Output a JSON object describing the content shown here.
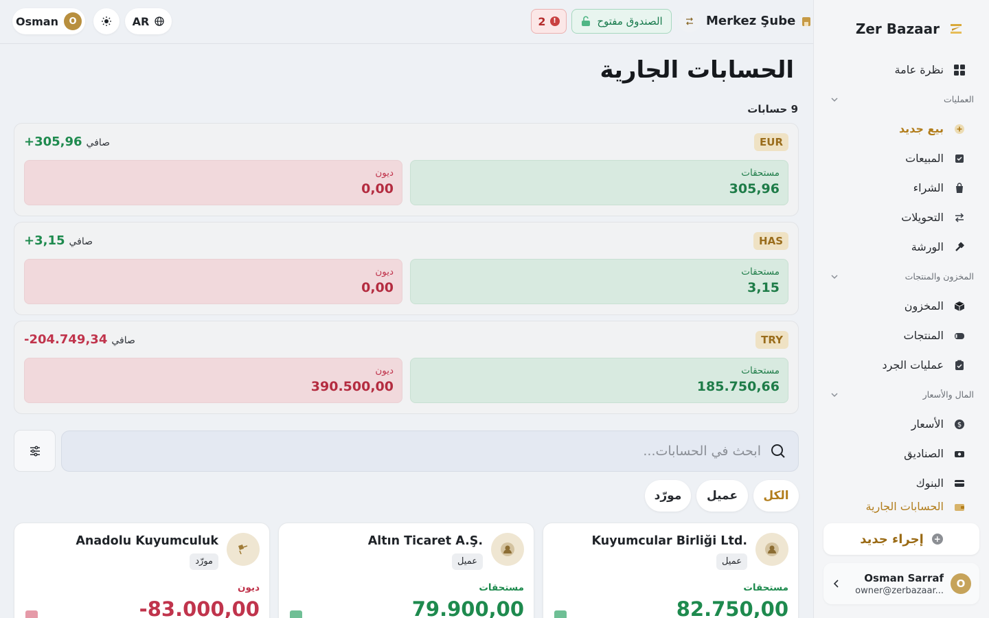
{
  "sidebar": {
    "brand": "Zer Bazaar",
    "overview": "نظرة عامة",
    "sections": [
      {
        "label": "العمليات"
      },
      {
        "label": "المخزون والمنتجات"
      },
      {
        "label": "المال والأسعار"
      }
    ],
    "items": {
      "new_sale": "بيع جديد",
      "sales": "المبيعات",
      "purchase": "الشراء",
      "transfers": "التحويلات",
      "workshop": "الورشة",
      "inventory": "المخزون",
      "products": "المنتجات",
      "stock_count": "عمليات الجرد",
      "prices": "الأسعار",
      "cash_boxes": "الصناديق",
      "banks": "البنوك",
      "current_accounts": "الحسابات الجارية"
    },
    "new_operation": "إجراء جديد",
    "user": {
      "initial": "O",
      "name": "Osman Sarraf",
      "email": "owner@zerbazaar..."
    }
  },
  "topbar": {
    "user": {
      "name": "Osman",
      "initial": "O"
    },
    "lang": "AR",
    "branch": "Merkez Şube",
    "cash_status": "الصندوق مفتوح",
    "alerts_count": "2",
    "alert_mark": "!"
  },
  "main": {
    "title": "الحسابات الجارية",
    "account_count": "9 حسابات",
    "net_label": "صافي",
    "receivables_label": "مستحقات",
    "debts_label": "ديون",
    "currencies": [
      {
        "code": "EUR",
        "net": "+305,96",
        "receivables": "305,96",
        "debts": "0,00"
      },
      {
        "code": "HAS",
        "net": "+3,15",
        "receivables": "3,15",
        "debts": "0,00"
      },
      {
        "code": "TRY",
        "net": "-204.749,34",
        "receivables": "185.750,66",
        "debts": "390.500,00"
      }
    ],
    "search_placeholder": "ابحث في الحسابات...",
    "filters": {
      "all": "الكل",
      "customer": "عميل",
      "supplier": "مورّد"
    },
    "accounts": [
      {
        "name": "Kuyumcular Birliği Ltd.",
        "type": "عميل",
        "kind": "مستحقات",
        "amount": "82.750,00"
      },
      {
        "name": "Altın Ticaret A.Ş.",
        "type": "عميل",
        "kind": "مستحقات",
        "amount": "79.900,00"
      },
      {
        "name": "Anadolu Kuyumculuk",
        "type": "مورّد",
        "kind": "ديون",
        "amount": "-83.000,00"
      }
    ]
  },
  "colors": {
    "accent": "#b27d1b",
    "positive": "#1e8a4e",
    "negative": "#c0344c",
    "receivables_bg": "#d8eae0",
    "debts_bg": "#f1d9dc"
  }
}
